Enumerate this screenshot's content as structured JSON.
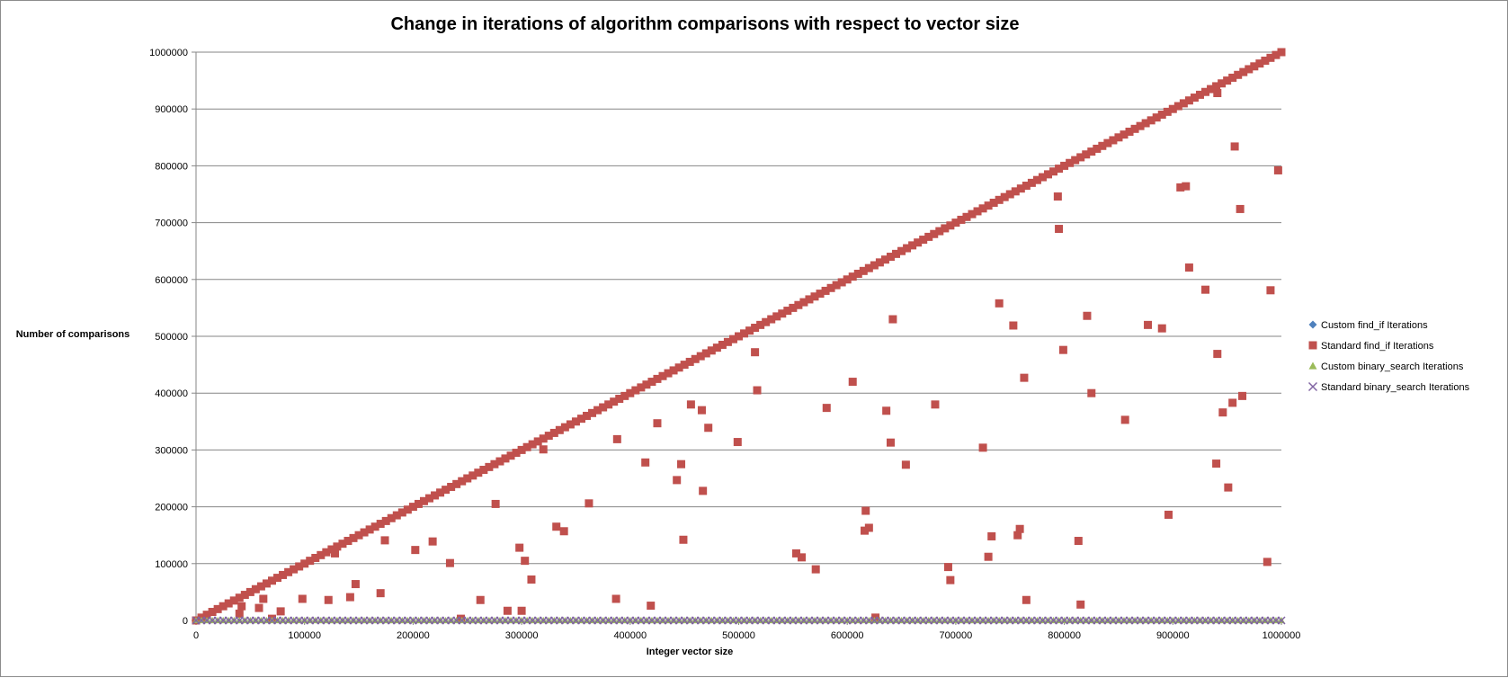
{
  "chart_data": {
    "type": "scatter",
    "title": "Change in iterations of algorithm comparisons with respect to vector size",
    "xlabel": "Integer vector size",
    "ylabel": "Number of comparisons",
    "xlim": [
      0,
      1000000
    ],
    "ylim": [
      0,
      1000000
    ],
    "x_ticks": [
      "0",
      "100000",
      "200000",
      "300000",
      "400000",
      "500000",
      "600000",
      "700000",
      "800000",
      "900000",
      "1000000"
    ],
    "y_ticks": [
      "0",
      "100000",
      "200000",
      "300000",
      "400000",
      "500000",
      "600000",
      "700000",
      "800000",
      "900000",
      "1000000"
    ],
    "grid": "horizontal",
    "legend_position": "right",
    "colors": {
      "custom_find_if": "#4F81BD",
      "standard_find_if": "#C0504D",
      "custom_binary_search": "#9BBB59",
      "standard_binary_search": "#8064A2",
      "grid": "#868686"
    },
    "series": [
      {
        "name": "Custom find_if Iterations",
        "marker": "diamond",
        "color": "#4F81BD",
        "pattern": "dense points from x=0 to x=1000000 at values equal to x (hidden beneath Standard find_if series)",
        "diagonal": {
          "x_start": 0,
          "x_end": 1000000,
          "step": 5000,
          "slope": 1
        },
        "points": []
      },
      {
        "name": "Standard find_if Iterations",
        "marker": "square",
        "color": "#C0504D",
        "pattern": "dense points along y = x plus scattered points below",
        "diagonal": {
          "x_start": 0,
          "x_end": 1000000,
          "step": 5000,
          "slope": 1
        },
        "points": [
          [
            40000,
            12000
          ],
          [
            42000,
            25000
          ],
          [
            58000,
            22000
          ],
          [
            62000,
            38000
          ],
          [
            70000,
            3000
          ],
          [
            78000,
            16000
          ],
          [
            98000,
            38000
          ],
          [
            122000,
            36000
          ],
          [
            128000,
            118000
          ],
          [
            142000,
            41000
          ],
          [
            147000,
            64000
          ],
          [
            170000,
            48000
          ],
          [
            174000,
            141000
          ],
          [
            202000,
            124000
          ],
          [
            218000,
            139000
          ],
          [
            234000,
            101000
          ],
          [
            244000,
            3000
          ],
          [
            262000,
            36000
          ],
          [
            276000,
            205000
          ],
          [
            287000,
            17000
          ],
          [
            298000,
            128000
          ],
          [
            300000,
            17000
          ],
          [
            303000,
            105000
          ],
          [
            309000,
            72000
          ],
          [
            320000,
            301000
          ],
          [
            332000,
            165000
          ],
          [
            339000,
            157000
          ],
          [
            362000,
            206000
          ],
          [
            387000,
            38000
          ],
          [
            388000,
            319000
          ],
          [
            414000,
            278000
          ],
          [
            419000,
            26000
          ],
          [
            425000,
            347000
          ],
          [
            443000,
            247000
          ],
          [
            447000,
            275000
          ],
          [
            449000,
            142000
          ],
          [
            456000,
            380000
          ],
          [
            466000,
            370000
          ],
          [
            467000,
            228000
          ],
          [
            472000,
            339000
          ],
          [
            499000,
            314000
          ],
          [
            515000,
            472000
          ],
          [
            517000,
            405000
          ],
          [
            553000,
            118000
          ],
          [
            558000,
            111000
          ],
          [
            571000,
            90000
          ],
          [
            581000,
            374000
          ],
          [
            605000,
            420000
          ],
          [
            616000,
            158000
          ],
          [
            617000,
            193000
          ],
          [
            620000,
            163000
          ],
          [
            626000,
            5000
          ],
          [
            636000,
            369000
          ],
          [
            640000,
            313000
          ],
          [
            642000,
            530000
          ],
          [
            654000,
            274000
          ],
          [
            681000,
            380000
          ],
          [
            693000,
            94000
          ],
          [
            695000,
            71000
          ],
          [
            725000,
            304000
          ],
          [
            730000,
            112000
          ],
          [
            733000,
            148000
          ],
          [
            740000,
            558000
          ],
          [
            753000,
            519000
          ],
          [
            757000,
            150000
          ],
          [
            759000,
            161000
          ],
          [
            763000,
            427000
          ],
          [
            765000,
            36000
          ],
          [
            794000,
            746000
          ],
          [
            795000,
            689000
          ],
          [
            799000,
            476000
          ],
          [
            813000,
            140000
          ],
          [
            815000,
            28000
          ],
          [
            821000,
            536000
          ],
          [
            825000,
            400000
          ],
          [
            856000,
            353000
          ],
          [
            877000,
            520000
          ],
          [
            890000,
            514000
          ],
          [
            896000,
            186000
          ],
          [
            907000,
            762000
          ],
          [
            912000,
            764000
          ],
          [
            915000,
            621000
          ],
          [
            930000,
            582000
          ],
          [
            940000,
            276000
          ],
          [
            941000,
            469000
          ],
          [
            941000,
            928000
          ],
          [
            946000,
            366000
          ],
          [
            951000,
            234000
          ],
          [
            955000,
            383000
          ],
          [
            957000,
            834000
          ],
          [
            962000,
            724000
          ],
          [
            964000,
            395000
          ],
          [
            987000,
            103000
          ],
          [
            990000,
            581000
          ],
          [
            997000,
            792000
          ]
        ]
      },
      {
        "name": "Custom binary_search Iterations",
        "marker": "triangle",
        "color": "#9BBB59",
        "pattern": "dense points near 0 across the whole x range",
        "flat": {
          "x_start": 0,
          "x_end": 1000000,
          "step": 5000,
          "value": 20
        },
        "points": []
      },
      {
        "name": "Standard binary_search Iterations",
        "marker": "x",
        "color": "#8064A2",
        "pattern": "dense points near 0 across the whole x range",
        "flat": {
          "x_start": 0,
          "x_end": 1000000,
          "step": 5000,
          "value": 20
        },
        "points": []
      }
    ]
  }
}
